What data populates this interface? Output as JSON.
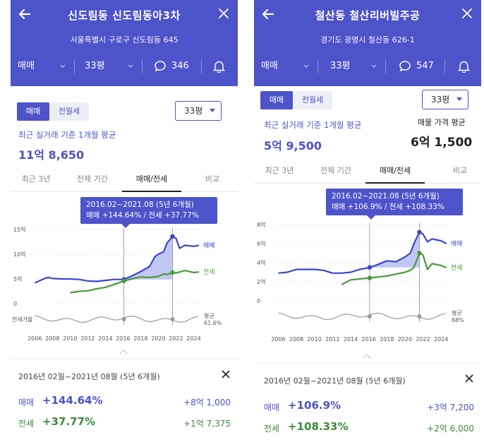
{
  "panels": [
    {
      "title": "신도림동 신도림동아3차",
      "address": "서울특별시 구로구 신도림동 645",
      "deal_type": "매매",
      "area": "33평",
      "comment_count": "346",
      "tabs": [
        "매매",
        "전월세"
      ],
      "area_select": "33평",
      "avg_caption": "최근 실거래 기준 1개월 평균",
      "avg_price": "11억 8,650",
      "listing_caption": "",
      "listing_price": "",
      "sub_tabs": [
        "최근 3년",
        "전체 기간",
        "매매/전세",
        "비교"
      ],
      "tooltip_line1": "2016.02~2021.08 (5년 6개월)",
      "tooltip_line2": "매매 +144.64%  /  전세 +37.77%",
      "y_ticks": [
        "15억",
        "10억",
        "5억",
        "0"
      ],
      "ratio_label": "전세가율",
      "ratio_avg_label": "평균",
      "ratio_avg_value": "61.6%",
      "legend_buy": "매매",
      "legend_rent": "전세",
      "period": "2016년 02월~2021년 08월 (5년 6개월)",
      "buy_label": "매매",
      "buy_pct": "+144.64%",
      "buy_amount": "+8억 1,000",
      "rent_label": "전세",
      "rent_pct": "+37.77%",
      "rent_amount": "+1억 7,375"
    },
    {
      "title": "철산동 철산리버빌주공",
      "address": "경기도 광명시 철산동 626-1",
      "deal_type": "매매",
      "area": "33평",
      "comment_count": "547",
      "tabs": [
        "매매",
        "전월세"
      ],
      "area_select": "33평",
      "avg_caption": "최근 실거래 기준 1개월 평균",
      "avg_price": "5억 9,500",
      "listing_caption": "매물 가격 평균",
      "listing_price": "6억 1,500",
      "sub_tabs": [
        "최근 3년",
        "전체 기간",
        "매매/전세",
        "비교"
      ],
      "tooltip_line1": "2016.02~2021.08 (5년 6개월)",
      "tooltip_line2": "매매 +106.9%  /  전세 +108.33%",
      "y_ticks": [
        "8억",
        "6억",
        "4억",
        "2억",
        "0"
      ],
      "ratio_label": "",
      "ratio_avg_label": "평균",
      "ratio_avg_value": "68%",
      "legend_buy": "매매",
      "legend_rent": "전세",
      "period": "2016년 02월~2021년 08월 (5년 6개월)",
      "buy_label": "매매",
      "buy_pct": "+106.9%",
      "buy_amount": "+3억 7,200",
      "rent_label": "전세",
      "rent_pct": "+108.33%",
      "rent_amount": "+2억 6,000"
    }
  ],
  "chart_data": [
    {
      "type": "line",
      "title": "신도림동 신도림동아3차 매매/전세",
      "ylabel": "억",
      "ylim": [
        0,
        15
      ],
      "x_ticks": [
        "2006",
        "2008",
        "2010",
        "2012",
        "2014",
        "2016",
        "2018",
        "2020",
        "2022",
        "2024"
      ],
      "xlim": [
        2005.5,
        2025
      ],
      "highlight": [
        2016.1,
        2021.6
      ],
      "series": [
        {
          "name": "매매",
          "color": "#3b44d1",
          "x": [
            2006,
            2007,
            2007.5,
            2008,
            2009,
            2010,
            2011,
            2012,
            2013,
            2014,
            2015,
            2016.1,
            2017,
            2018,
            2019,
            2019.6,
            2020,
            2020.6,
            2021,
            2021.6,
            2022,
            2022.4,
            2023,
            2024,
            2024.6
          ],
          "y": [
            4.2,
            5.0,
            5.3,
            5.1,
            5.0,
            5.0,
            4.9,
            4.6,
            4.5,
            4.7,
            4.9,
            4.9,
            5.6,
            6.5,
            7.5,
            9.5,
            10.0,
            10.5,
            12.3,
            13.6,
            13.2,
            11.2,
            11.8,
            11.6,
            11.8
          ]
        },
        {
          "name": "전세",
          "color": "#4a9a3c",
          "x": [
            2010,
            2011,
            2012,
            2013,
            2014,
            2015,
            2016.1,
            2017,
            2018,
            2019,
            2020,
            2020.6,
            2021,
            2021.6,
            2022,
            2023,
            2024,
            2024.6
          ],
          "y": [
            2.2,
            2.5,
            2.6,
            3.0,
            3.3,
            3.9,
            4.6,
            5.0,
            5.4,
            5.3,
            5.5,
            6.0,
            5.9,
            6.3,
            6.2,
            6.7,
            6.3,
            6.4
          ]
        }
      ]
    },
    {
      "type": "line",
      "title": "철산동 철산리버빌주공 매매/전세",
      "ylabel": "억",
      "ylim": [
        0,
        8
      ],
      "x_ticks": [
        "2006",
        "2008",
        "2010",
        "2012",
        "2014",
        "2016",
        "2018",
        "2020",
        "2022",
        "2024"
      ],
      "xlim": [
        2005.5,
        2025
      ],
      "highlight": [
        2016.1,
        2021.6
      ],
      "series": [
        {
          "name": "매매",
          "color": "#3b44d1",
          "x": [
            2006,
            2007,
            2008,
            2009,
            2010,
            2011,
            2012,
            2013,
            2014,
            2015,
            2016.1,
            2017,
            2018,
            2019,
            2020,
            2020.6,
            2021,
            2021.6,
            2022,
            2022.5,
            2023,
            2024,
            2024.6
          ],
          "y": [
            2.9,
            3.0,
            3.3,
            3.3,
            3.3,
            3.2,
            2.9,
            2.9,
            3.0,
            3.3,
            3.5,
            3.8,
            4.2,
            4.1,
            4.6,
            5.0,
            6.0,
            7.2,
            7.0,
            6.2,
            6.5,
            6.3,
            6.0
          ]
        },
        {
          "name": "전세",
          "color": "#4a9a3c",
          "x": [
            2013,
            2014,
            2015,
            2016.1,
            2017,
            2018,
            2019,
            2020,
            2020.6,
            2021,
            2021.6,
            2022,
            2022.5,
            2023,
            2024,
            2024.6
          ],
          "y": [
            1.7,
            2.2,
            2.3,
            2.4,
            2.5,
            2.6,
            2.8,
            3.0,
            3.2,
            3.5,
            5.0,
            4.8,
            3.3,
            3.9,
            3.7,
            3.5
          ]
        }
      ]
    }
  ]
}
